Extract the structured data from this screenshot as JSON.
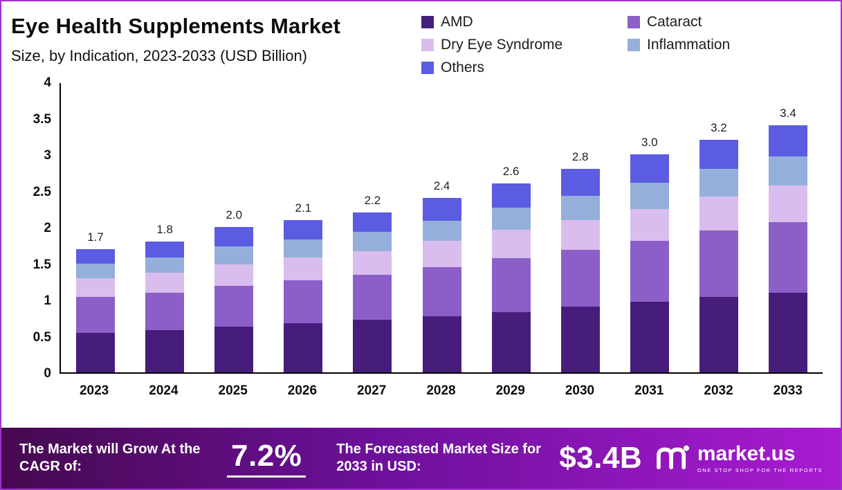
{
  "header": {
    "title": "Eye Health Supplements Market",
    "subtitle": "Size, by Indication, 2023-2033 (USD Billion)"
  },
  "chart_data": {
    "type": "bar",
    "stacked": true,
    "title": "Eye Health Supplements Market Size, by Indication, 2023-2033 (USD Billion)",
    "categories": [
      "2023",
      "2024",
      "2025",
      "2026",
      "2027",
      "2028",
      "2029",
      "2030",
      "2031",
      "2032",
      "2033"
    ],
    "totals": [
      1.7,
      1.8,
      2.0,
      2.1,
      2.2,
      2.4,
      2.6,
      2.8,
      3.0,
      3.2,
      3.4
    ],
    "series": [
      {
        "name": "AMD",
        "color": "#471d7c",
        "values": [
          0.54,
          0.58,
          0.63,
          0.68,
          0.72,
          0.77,
          0.83,
          0.91,
          0.97,
          1.04,
          1.1
        ]
      },
      {
        "name": "Cataract",
        "color": "#8c5fc8",
        "values": [
          0.5,
          0.52,
          0.56,
          0.59,
          0.62,
          0.68,
          0.74,
          0.78,
          0.84,
          0.91,
          0.97
        ]
      },
      {
        "name": "Dry Eye Syndrome",
        "color": "#d9bdee",
        "values": [
          0.26,
          0.27,
          0.3,
          0.31,
          0.33,
          0.36,
          0.39,
          0.41,
          0.44,
          0.47,
          0.5
        ]
      },
      {
        "name": "Inflammation",
        "color": "#94afd9",
        "values": [
          0.2,
          0.21,
          0.24,
          0.25,
          0.26,
          0.28,
          0.31,
          0.33,
          0.36,
          0.38,
          0.4
        ]
      },
      {
        "name": "Others",
        "color": "#5b5ce2",
        "values": [
          0.2,
          0.22,
          0.27,
          0.27,
          0.27,
          0.31,
          0.33,
          0.37,
          0.39,
          0.4,
          0.43
        ]
      }
    ],
    "xlabel": "",
    "ylabel": "",
    "ylim": [
      0,
      4
    ],
    "yticks": [
      0,
      0.5,
      1,
      1.5,
      2,
      2.5,
      3,
      3.5,
      4
    ],
    "legend_position": "top-right",
    "grid": false
  },
  "footer": {
    "cagr_label": "The Market will Grow At the CAGR of:",
    "cagr_value": "7.2%",
    "forecast_label": "The Forecasted Market Size for 2033 in USD:",
    "forecast_value": "$3.4B",
    "brand": "market.us",
    "brand_tagline": "ONE STOP SHOP FOR THE REPORTS"
  },
  "colors": {
    "border": "#a22ed0",
    "banner_gradient_left": "#45094f",
    "banner_gradient_right": "#a81bd1",
    "axis": "#000000"
  }
}
